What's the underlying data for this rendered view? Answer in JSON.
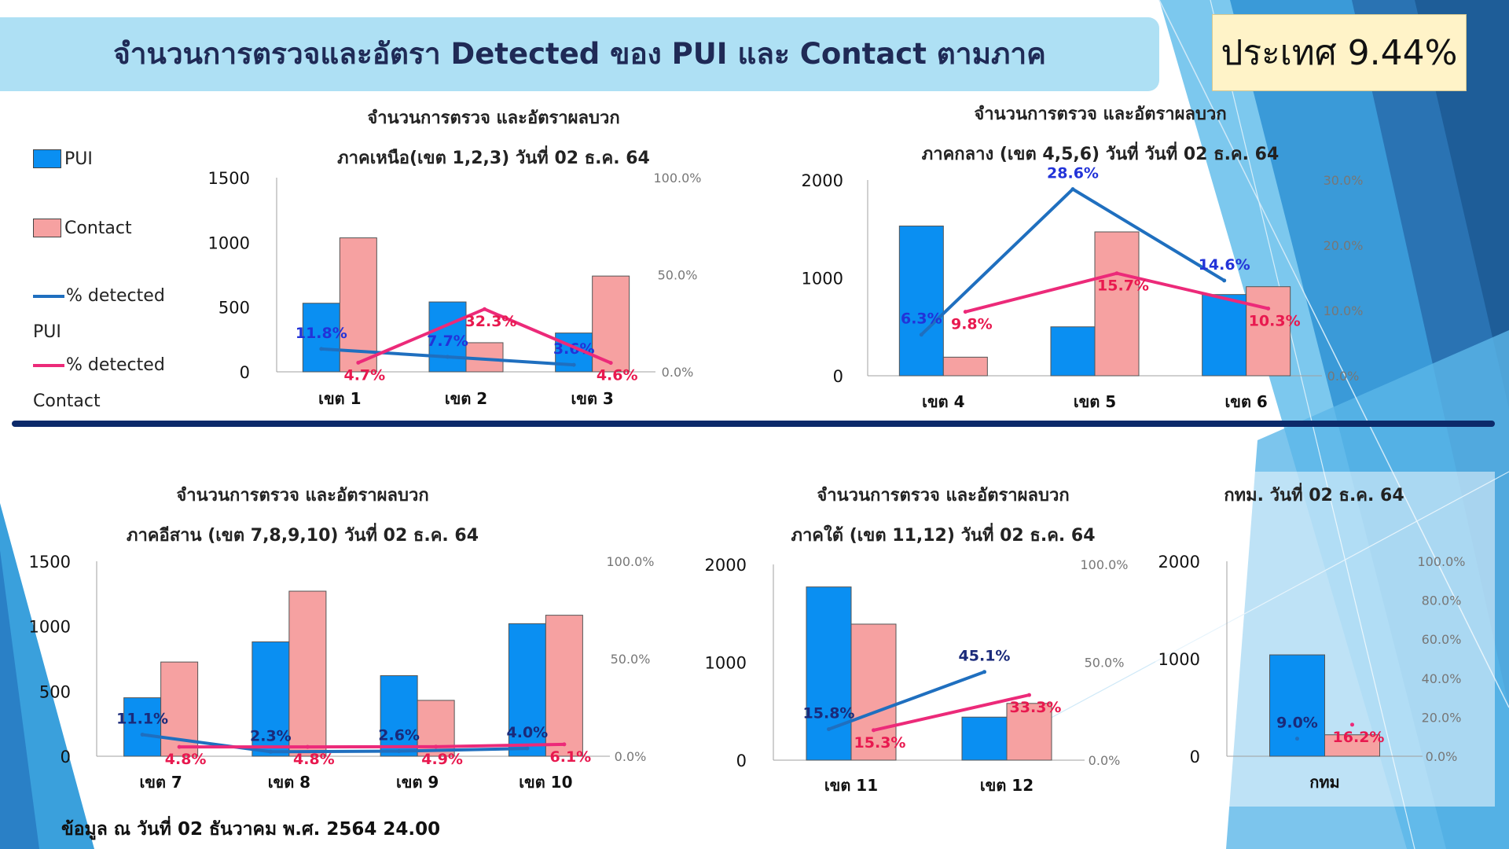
{
  "header": {
    "title": "จำนวนการตรวจและอัตรา Detected ของ PUI และ Contact ตามภาค",
    "country_rate": "ประเทศ 9.44%"
  },
  "legend": {
    "pui": "PUI",
    "contact": "Contact",
    "pct_pui_1": "% detected",
    "pct_pui_2": "PUI",
    "pct_contact_1": "% detected",
    "pct_contact_2": "Contact"
  },
  "footer": "ข้อมูล ณ วันที่ 02 ธันวาคม พ.ศ. 2564 24.00",
  "colors": {
    "pui_bar": "#0a8ff2",
    "contact_bar": "#f6a1a1",
    "pui_line": "#1f6fbf",
    "contact_line": "#ec2a79",
    "title_band": "#aee0f4",
    "divider": "#0c2a6a"
  },
  "chart_data": [
    {
      "type": "bar",
      "title": "จำนวนการตรวจ และอัตราผลบวก",
      "subtitle": "ภาคเหนือ(เขต 1,2,3) วันที่ 02 ธ.ค. 64",
      "categories": [
        "เขต 1",
        "เขต 2",
        "เขต 3"
      ],
      "series": [
        {
          "name": "PUI",
          "values": [
            530,
            540,
            300
          ]
        },
        {
          "name": "Contact",
          "values": [
            1035,
            225,
            740
          ]
        }
      ],
      "line_series": [
        {
          "name": "% detected PUI",
          "values": [
            11.8,
            7.7,
            3.6
          ],
          "labels": [
            "11.8%",
            "7.7%",
            "3.6%"
          ]
        },
        {
          "name": "% detected Contact",
          "values": [
            4.7,
            32.3,
            4.6
          ],
          "labels": [
            "4.7%",
            "32.3%",
            "4.6%"
          ]
        }
      ],
      "ylim": [
        0,
        1500
      ],
      "yticks": [
        "0",
        "500",
        "1000",
        "1500"
      ],
      "y2lim": [
        0,
        100
      ],
      "y2ticks": [
        "0.0%",
        "50.0%",
        "100.0%"
      ]
    },
    {
      "type": "bar",
      "title": "จำนวนการตรวจ และอัตราผลบวก",
      "subtitle": "ภาคกลาง (เขต 4,5,6) วันที่ วันที่ 02 ธ.ค. 64",
      "categories": [
        "เขต 4",
        "เขต 5",
        "เขต 6"
      ],
      "series": [
        {
          "name": "PUI",
          "values": [
            1530,
            500,
            830
          ]
        },
        {
          "name": "Contact",
          "values": [
            190,
            1470,
            910
          ]
        }
      ],
      "line_series": [
        {
          "name": "% detected PUI",
          "values": [
            6.3,
            28.6,
            14.6
          ],
          "labels": [
            "6.3%",
            "28.6%",
            "14.6%"
          ]
        },
        {
          "name": "% detected Contact",
          "values": [
            9.8,
            15.7,
            10.3
          ],
          "labels": [
            "9.8%",
            "15.7%",
            "10.3%"
          ]
        }
      ],
      "ylim": [
        0,
        2000
      ],
      "yticks": [
        "0",
        "1000",
        "2000"
      ],
      "y2lim": [
        0,
        30
      ],
      "y2ticks": [
        "0.0%",
        "10.0%",
        "20.0%",
        "30.0%"
      ]
    },
    {
      "type": "bar",
      "title": "จำนวนการตรวจ และอัตราผลบวก",
      "subtitle": "ภาคอีสาน (เขต 7,8,9,10) วันที่ 02 ธ.ค. 64",
      "categories": [
        "เขต 7",
        "เขต 8",
        "เขต 9",
        "เขต 10"
      ],
      "series": [
        {
          "name": "PUI",
          "values": [
            450,
            880,
            620,
            1020
          ]
        },
        {
          "name": "Contact",
          "values": [
            725,
            1270,
            430,
            1085
          ]
        }
      ],
      "line_series": [
        {
          "name": "% detected PUI",
          "values": [
            11.1,
            2.3,
            2.6,
            4.0
          ],
          "labels": [
            "11.1%",
            "2.3%",
            "2.6%",
            "4.0%"
          ]
        },
        {
          "name": "% detected Contact",
          "values": [
            4.8,
            4.8,
            4.9,
            6.1
          ],
          "labels": [
            "4.8%",
            "4.8%",
            "4.9%",
            "6.1%"
          ]
        }
      ],
      "ylim": [
        0,
        1500
      ],
      "yticks": [
        "0",
        "500",
        "1000",
        "1500"
      ],
      "y2lim": [
        0,
        100
      ],
      "y2ticks": [
        "0.0%",
        "50.0%",
        "100.0%"
      ]
    },
    {
      "type": "bar",
      "title": "จำนวนการตรวจ และอัตราผลบวก",
      "subtitle": "ภาคใต้ (เขต 11,12) วันที่ 02 ธ.ค. 64",
      "categories": [
        "เขต 11",
        "เขต 12"
      ],
      "series": [
        {
          "name": "PUI",
          "values": [
            1770,
            440
          ]
        },
        {
          "name": "Contact",
          "values": [
            1390,
            580
          ]
        }
      ],
      "line_series": [
        {
          "name": "% detected PUI",
          "values": [
            15.8,
            45.1
          ],
          "labels": [
            "15.8%",
            "45.1%"
          ]
        },
        {
          "name": "% detected Contact",
          "values": [
            15.3,
            33.3
          ],
          "labels": [
            "15.3%",
            "33.3%"
          ]
        }
      ],
      "ylim": [
        0,
        2000
      ],
      "yticks": [
        "0",
        "1000",
        "2000"
      ],
      "y2lim": [
        0,
        100
      ],
      "y2ticks": [
        "0.0%",
        "50.0%",
        "100.0%"
      ]
    },
    {
      "type": "bar",
      "title": "กทม. วันที่ 02 ธ.ค. 64",
      "subtitle": "",
      "categories": [
        "กทม"
      ],
      "series": [
        {
          "name": "PUI",
          "values": [
            1040
          ]
        },
        {
          "name": "Contact",
          "values": [
            220
          ]
        }
      ],
      "line_series": [
        {
          "name": "% detected PUI",
          "values": [
            9.0
          ],
          "labels": [
            "9.0%"
          ]
        },
        {
          "name": "% detected Contact",
          "values": [
            16.2
          ],
          "labels": [
            "16.2%"
          ]
        }
      ],
      "ylim": [
        0,
        2000
      ],
      "yticks": [
        "0",
        "1000",
        "2000"
      ],
      "y2lim": [
        0,
        100
      ],
      "y2ticks": [
        "0.0%",
        "20.0%",
        "40.0%",
        "60.0%",
        "80.0%",
        "100.0%"
      ]
    }
  ]
}
